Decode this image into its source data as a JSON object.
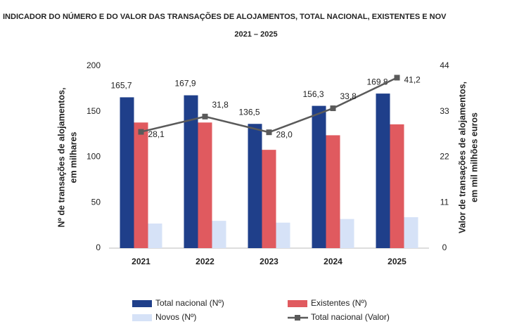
{
  "chart_data": {
    "type": "bar_line",
    "title": "INDICADOR DO NÚMERO E DO VALOR DAS TRANSAÇÕES DE ALOJAMENTOS, TOTAL NACIONAL, EXISTENTES E NOV",
    "subtitle": "2021 – 2025",
    "ylabel": [
      "Nº de transações de alojamentos,",
      "em milhares"
    ],
    "y2label": [
      "Valor de transações de alojamentos,",
      "em mil milhões euros"
    ],
    "categories": [
      "2021",
      "2022",
      "2023",
      "2024",
      "2025"
    ],
    "series": [
      {
        "name": "Total nacional (Nº)",
        "color": "#1f3f8a",
        "type": "bar",
        "values": [
          165.7,
          167.9,
          136.5,
          156.3,
          169.8
        ],
        "value_labels": [
          "165,7",
          "167,9",
          "136,5",
          "156,3",
          "169,8"
        ]
      },
      {
        "name": "Existentes (Nº)",
        "color": "#e05a5f",
        "type": "bar",
        "values": [
          138,
          138,
          108,
          124,
          136
        ]
      },
      {
        "name": "Novos (Nº)",
        "color": "#d6e2f7",
        "type": "bar",
        "values": [
          27,
          30,
          28,
          32,
          34
        ]
      },
      {
        "name": "Total nacional (Valor)",
        "color": "#5a5a5a",
        "type": "line",
        "axis": "y2",
        "values": [
          28.1,
          31.8,
          28.0,
          33.8,
          41.2
        ],
        "value_labels": [
          "28,1",
          "31,8",
          "28,0",
          "33,8",
          "41,2"
        ]
      }
    ],
    "ylim": [
      0,
      200
    ],
    "yticks": [
      0,
      50,
      100,
      150,
      200
    ],
    "y2lim": [
      0,
      44
    ],
    "y2ticks": [
      0,
      11,
      22,
      33,
      44
    ]
  }
}
